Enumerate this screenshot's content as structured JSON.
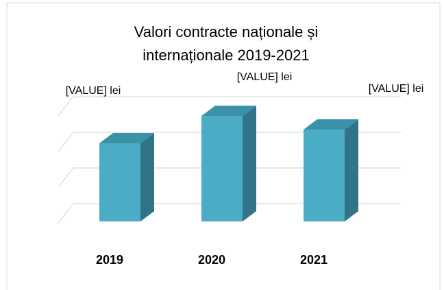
{
  "chart_data": {
    "type": "bar3d",
    "title": [
      "Valori contracte naționale și",
      "internaționale 2019-2021"
    ],
    "categories": [
      "2019",
      "2020",
      "2021"
    ],
    "values": [
      2,
      2.7,
      2.35
    ],
    "value_labels": [
      "[VALUE] lei",
      "[VALUE] lei",
      "[VALUE] lei"
    ],
    "color": "#4bacc6",
    "ylim": [
      0,
      3
    ],
    "yticks": [
      0,
      1,
      2,
      3
    ],
    "grid": true
  }
}
